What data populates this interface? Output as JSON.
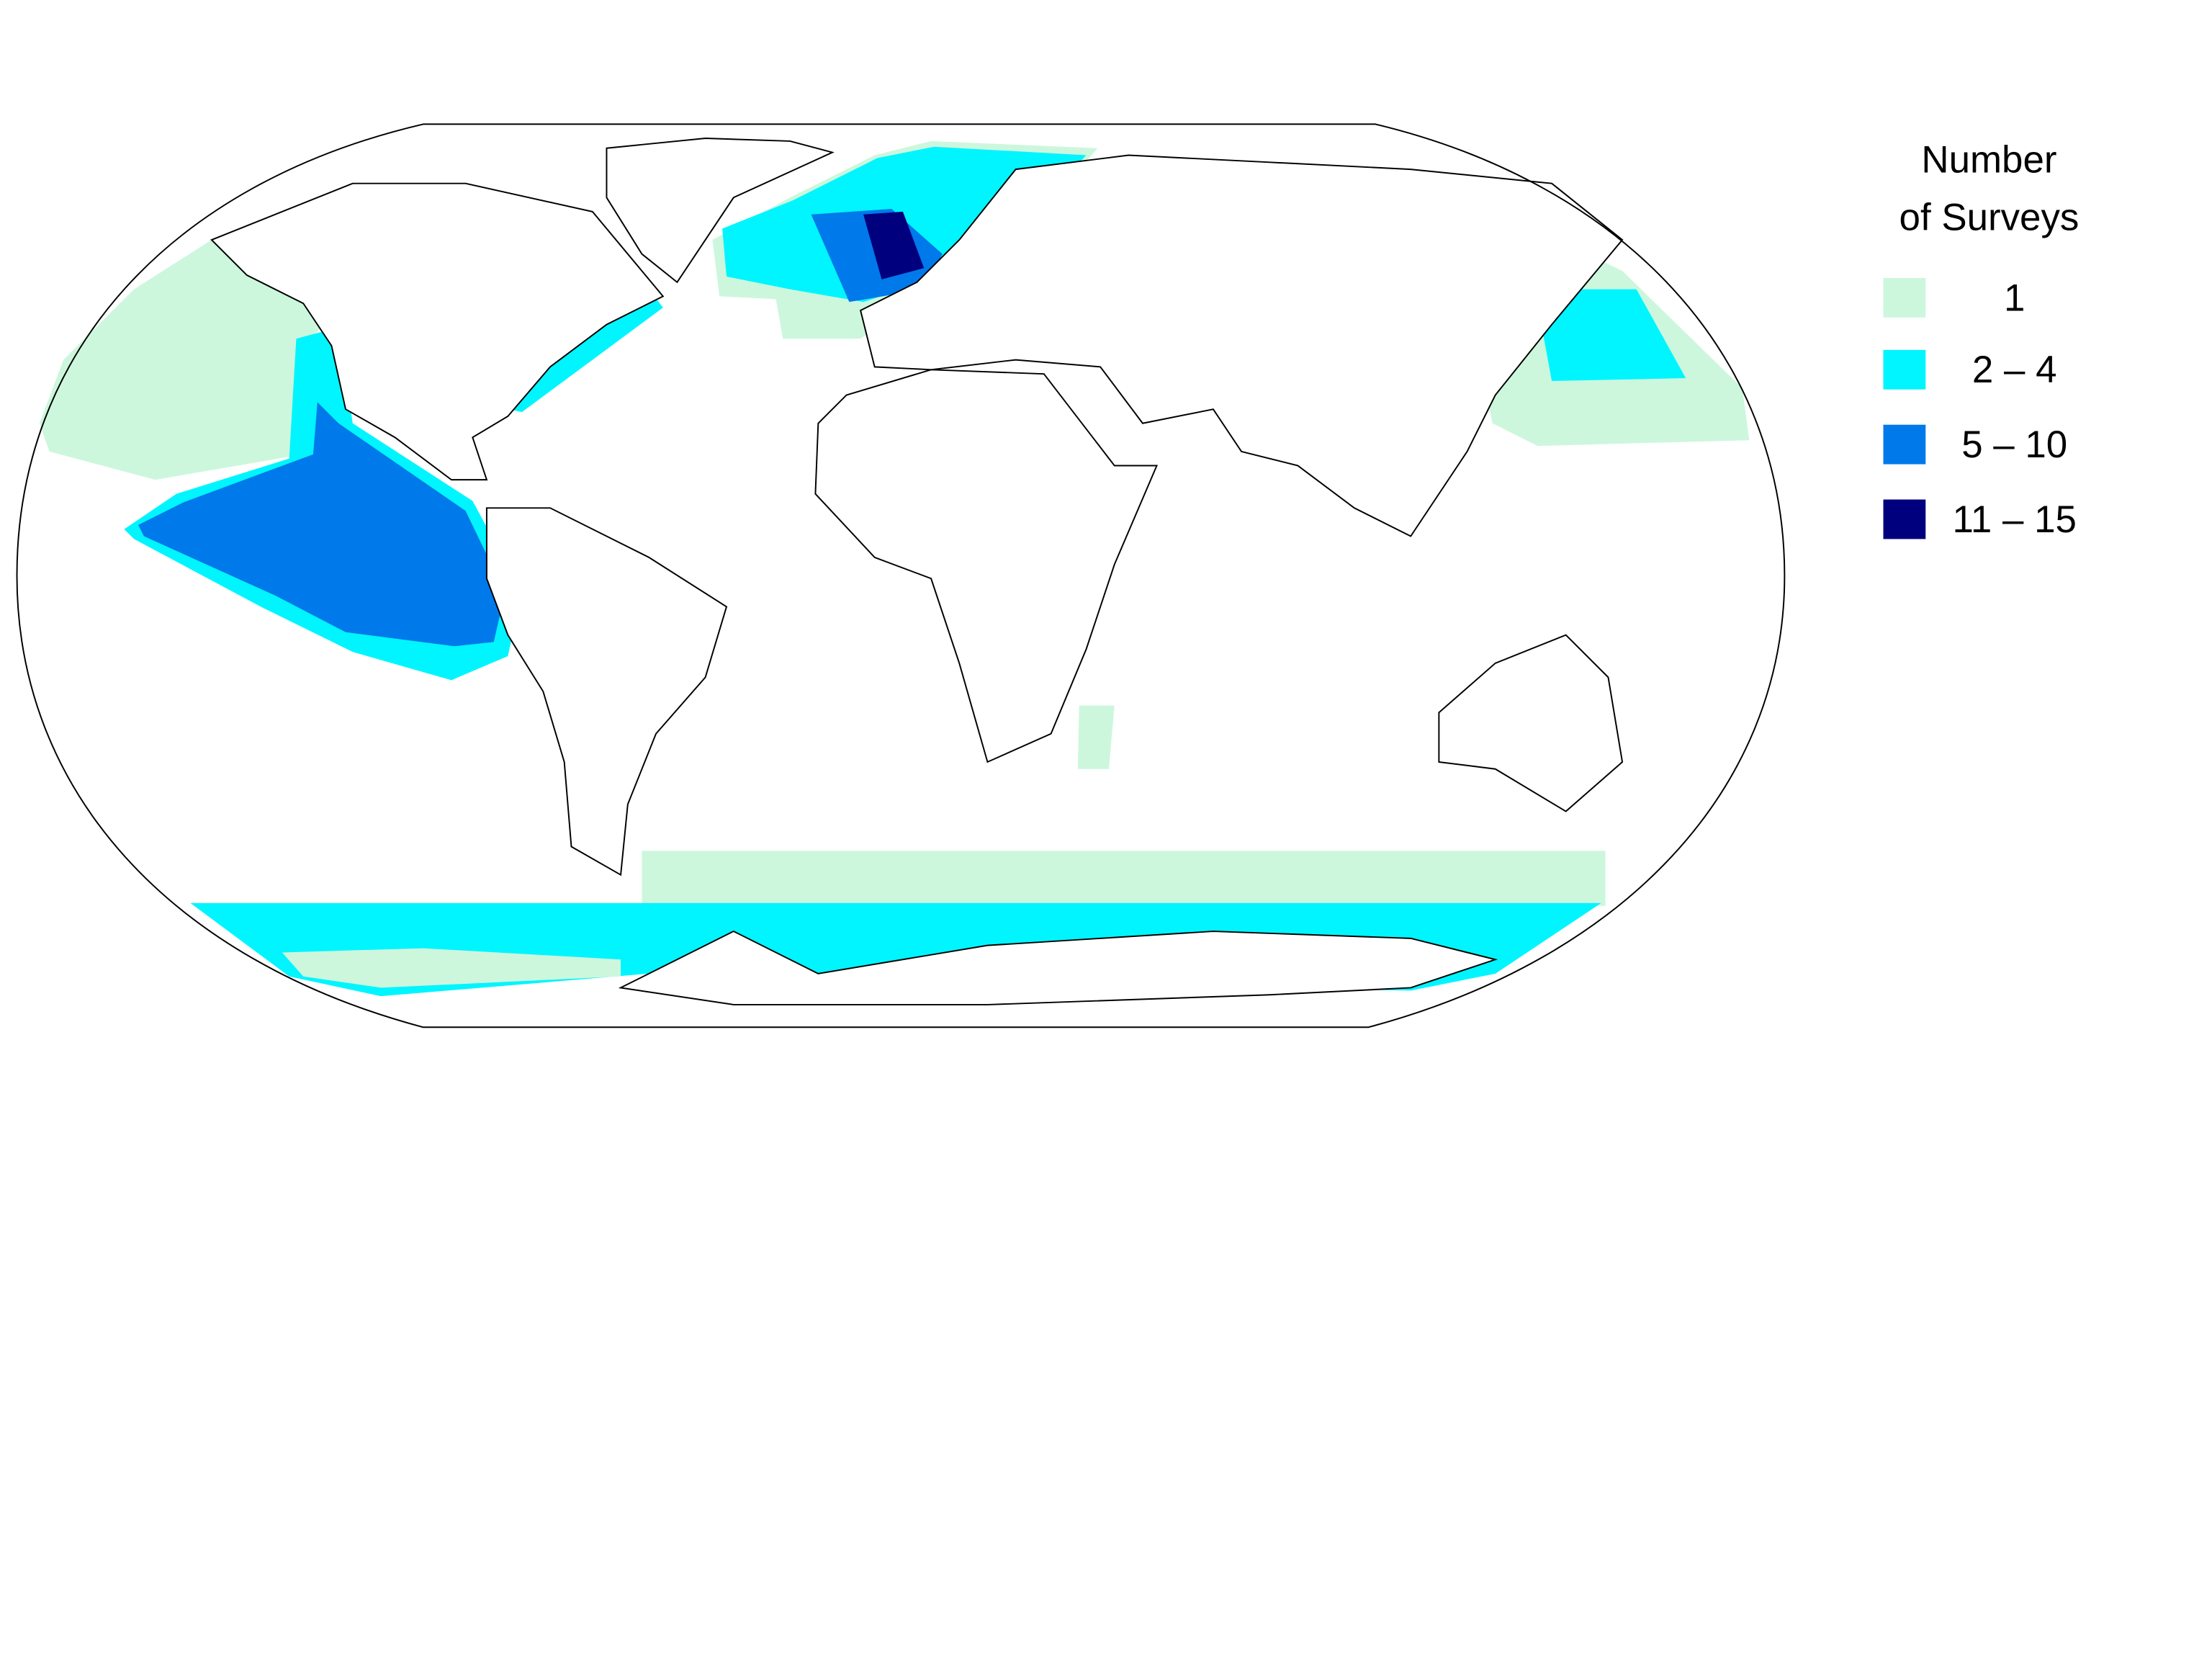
{
  "legend": {
    "title": [
      "Number",
      "of Surveys"
    ],
    "items": [
      {
        "label": "1",
        "color": "#ccf7dd"
      },
      {
        "label": "2 –   4",
        "color": "#00f5ff"
      },
      {
        "label": "5 – 10",
        "color": "#0079eb"
      },
      {
        "label": "11 – 15",
        "color": "#00007f"
      }
    ]
  }
}
